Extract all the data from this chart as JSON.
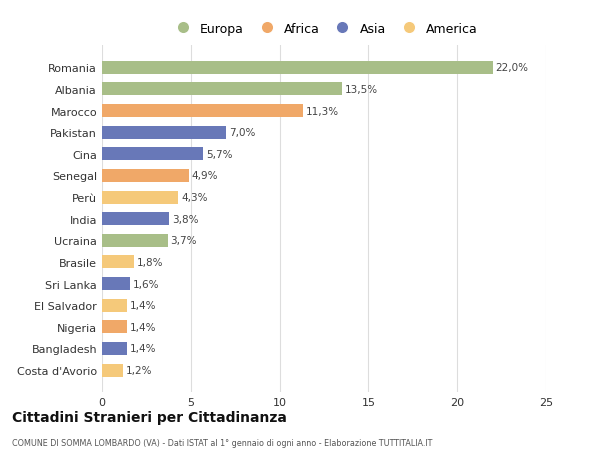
{
  "categories": [
    "Costa d'Avorio",
    "Bangladesh",
    "Nigeria",
    "El Salvador",
    "Sri Lanka",
    "Brasile",
    "Ucraina",
    "India",
    "Perù",
    "Senegal",
    "Cina",
    "Pakistan",
    "Marocco",
    "Albania",
    "Romania"
  ],
  "values": [
    1.2,
    1.4,
    1.4,
    1.4,
    1.6,
    1.8,
    3.7,
    3.8,
    4.3,
    4.9,
    5.7,
    7.0,
    11.3,
    13.5,
    22.0
  ],
  "labels": [
    "1,2%",
    "1,4%",
    "1,4%",
    "1,4%",
    "1,6%",
    "1,8%",
    "3,7%",
    "3,8%",
    "4,3%",
    "4,9%",
    "5,7%",
    "7,0%",
    "11,3%",
    "13,5%",
    "22,0%"
  ],
  "colors": [
    "#f5c97a",
    "#6878b8",
    "#f0a868",
    "#f5c97a",
    "#6878b8",
    "#f5c97a",
    "#a8be88",
    "#6878b8",
    "#f5c97a",
    "#f0a868",
    "#6878b8",
    "#6878b8",
    "#f0a868",
    "#a8be88",
    "#a8be88"
  ],
  "legend": {
    "Europa": "#a8be88",
    "Africa": "#f0a868",
    "Asia": "#6878b8",
    "America": "#f5c97a"
  },
  "xlim": [
    0,
    25
  ],
  "xticks": [
    0,
    5,
    10,
    15,
    20,
    25
  ],
  "title": "Cittadini Stranieri per Cittadinanza",
  "subtitle": "COMUNE DI SOMMA LOMBARDO (VA) - Dati ISTAT al 1° gennaio di ogni anno - Elaborazione TUTTITALIA.IT",
  "bg_color": "#ffffff",
  "bar_height": 0.6,
  "grid_color": "#dddddd"
}
